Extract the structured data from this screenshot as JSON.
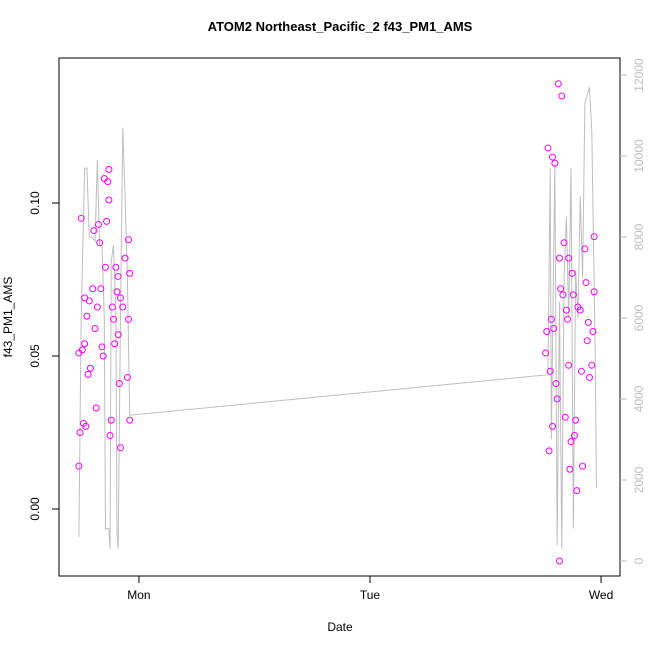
{
  "chart_data": {
    "type": "scatter",
    "title": "ATOM2 Northeast_Pacific_2 f43_PM1_AMS",
    "x_label": "Date",
    "y_label": "f43_PM1_AMS",
    "xlim": [
      -0.346,
      2.082
    ],
    "xticks": [
      {
        "value": 0,
        "label": "Mon"
      },
      {
        "value": 1,
        "label": "Tue"
      },
      {
        "value": 2,
        "label": "Wed"
      }
    ],
    "ylim": [
      -0.0219,
      0.1474
    ],
    "yticks": [
      {
        "value": 0,
        "label": "0.00"
      },
      {
        "value": 0.05,
        "label": "0.05"
      },
      {
        "value": 0.1,
        "label": "0.10"
      }
    ],
    "y2lim": [
      -370,
      12420
    ],
    "y2ticks": [
      0,
      2000,
      4000,
      6000,
      8000,
      10000,
      12000
    ],
    "series": [
      {
        "type": "scatter",
        "color": "#ff00ff",
        "x": [
          -0.26,
          -0.26,
          -0.255,
          -0.25,
          -0.245,
          -0.24,
          -0.235,
          -0.235,
          -0.23,
          -0.225,
          -0.22,
          -0.215,
          -0.21,
          -0.2,
          -0.195,
          -0.19,
          -0.185,
          -0.18,
          -0.175,
          -0.17,
          -0.165,
          -0.16,
          -0.155,
          -0.15,
          -0.145,
          -0.14,
          -0.135,
          -0.13,
          -0.13,
          -0.125,
          -0.12,
          -0.115,
          -0.11,
          -0.105,
          -0.1,
          -0.095,
          -0.09,
          -0.09,
          -0.085,
          -0.08,
          -0.08,
          -0.07,
          -0.06,
          -0.05,
          -0.045,
          -0.04,
          -0.04,
          -0.045,
          1.76,
          1.765,
          1.77,
          1.775,
          1.78,
          1.785,
          1.79,
          1.79,
          1.795,
          1.8,
          1.805,
          1.81,
          1.815,
          1.82,
          1.82,
          1.825,
          1.83,
          1.835,
          1.84,
          1.845,
          1.85,
          1.855,
          1.86,
          1.86,
          1.865,
          1.87,
          1.875,
          1.88,
          1.885,
          1.89,
          1.895,
          1.9,
          1.91,
          1.915,
          1.92,
          1.93,
          1.935,
          1.94,
          1.945,
          1.95,
          1.96,
          1.965,
          1.97,
          1.97
        ],
        "values": [
          0.014,
          0.051,
          0.025,
          0.095,
          0.052,
          0.028,
          0.054,
          0.069,
          0.027,
          0.063,
          0.044,
          0.068,
          0.046,
          0.072,
          0.091,
          0.059,
          0.033,
          0.066,
          0.093,
          0.087,
          0.072,
          0.053,
          0.05,
          0.108,
          0.079,
          0.094,
          0.107,
          0.111,
          0.101,
          0.024,
          0.029,
          0.066,
          0.062,
          0.054,
          0.079,
          0.071,
          0.076,
          0.057,
          0.041,
          0.02,
          0.069,
          0.066,
          0.082,
          0.043,
          0.088,
          0.077,
          0.029,
          0.062,
          0.051,
          0.058,
          0.118,
          0.019,
          0.045,
          0.062,
          0.027,
          0.115,
          0.059,
          0.113,
          0.041,
          0.036,
          0.139,
          0.082,
          -0.017,
          0.072,
          0.135,
          0.07,
          0.087,
          0.03,
          0.065,
          0.062,
          0.082,
          0.047,
          0.013,
          0.022,
          0.077,
          0.07,
          0.024,
          0.029,
          0.006,
          0.066,
          0.065,
          0.045,
          0.014,
          0.085,
          0.074,
          0.055,
          0.061,
          0.043,
          0.047,
          0.058,
          0.071,
          0.089
        ]
      },
      {
        "type": "line",
        "axis": "y2",
        "color": "#bebebe",
        "x": [
          -0.26,
          -0.25,
          -0.235,
          -0.225,
          -0.215,
          -0.205,
          -0.19,
          -0.18,
          -0.17,
          -0.16,
          -0.15,
          -0.145,
          -0.13,
          -0.125,
          -0.12,
          -0.11,
          -0.1,
          -0.095,
          -0.09,
          -0.08,
          -0.07,
          -0.06,
          -0.05,
          -0.04,
          1.77,
          1.78,
          1.785,
          1.79,
          1.8,
          1.81,
          1.82,
          1.83,
          1.84,
          1.85,
          1.86,
          1.87,
          1.88,
          1.89,
          1.9,
          1.91,
          1.92,
          1.93,
          1.94,
          1.95,
          1.96,
          1.975,
          1.98
        ],
        "values": [
          600,
          6000,
          9700,
          9700,
          8000,
          8000,
          7900,
          9900,
          7800,
          7800,
          6000,
          800,
          800,
          300,
          7400,
          7800,
          6200,
          700,
          300,
          6000,
          10700,
          9000,
          7000,
          3600,
          4600,
          9700,
          3000,
          5400,
          9800,
          400,
          6400,
          300,
          7000,
          8500,
          6000,
          9700,
          800,
          7200,
          6000,
          9000,
          7000,
          11300,
          11500,
          11700,
          10600,
          5000,
          1800
        ]
      }
    ]
  }
}
